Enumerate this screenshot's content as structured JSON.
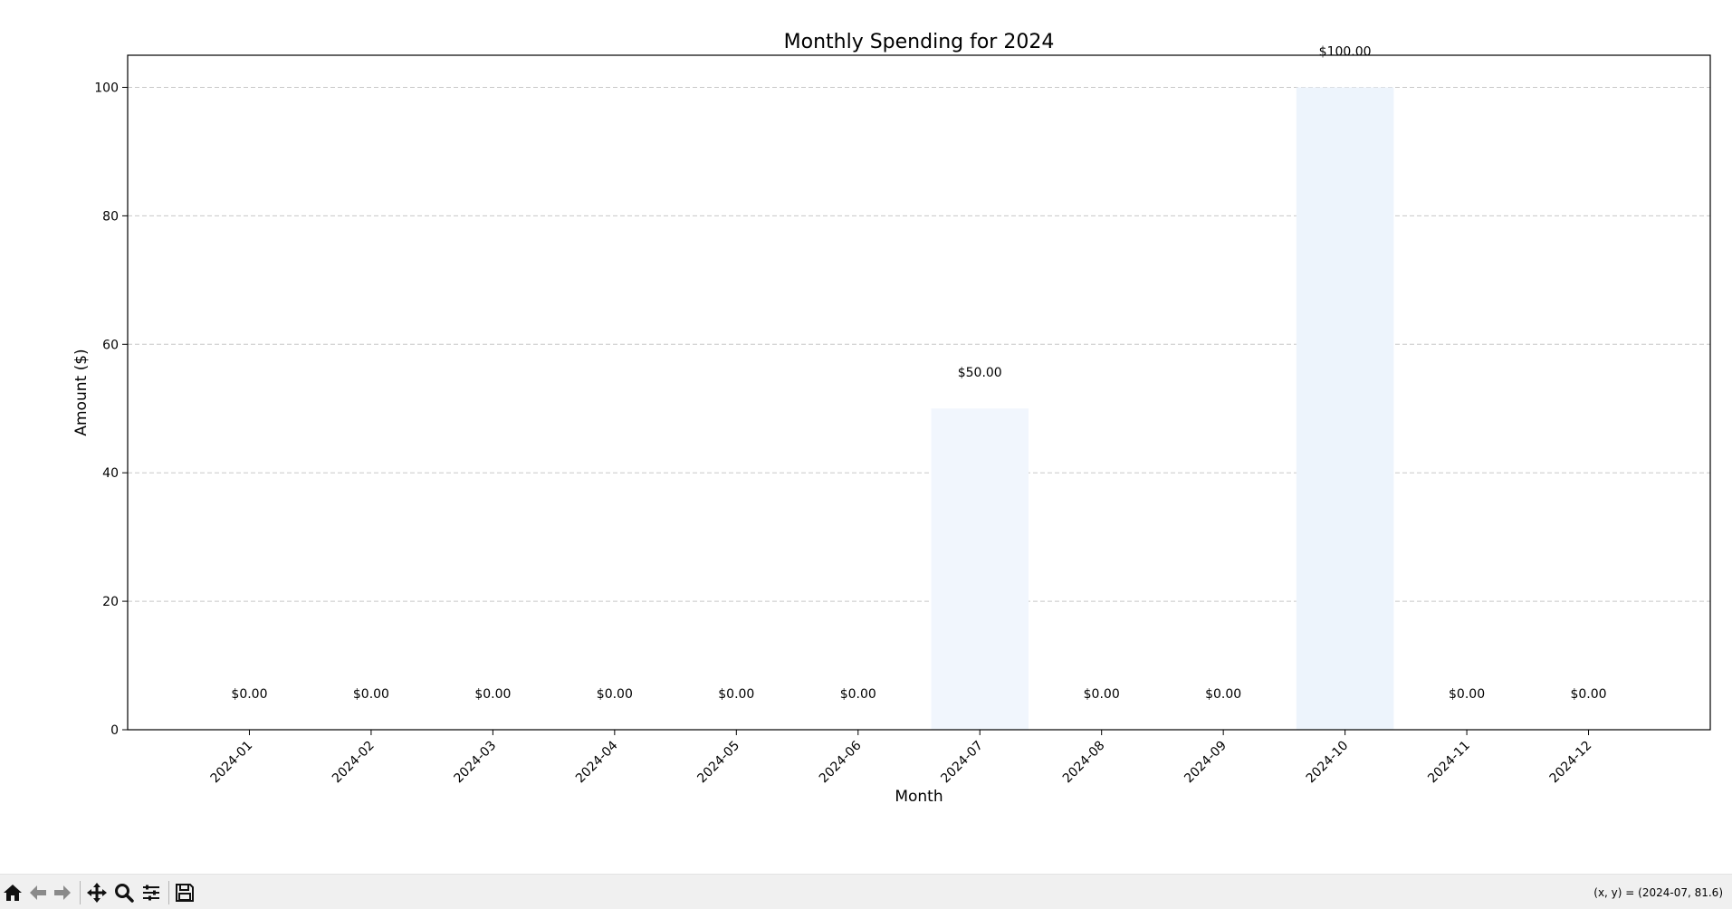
{
  "chart_data": {
    "type": "bar",
    "title": "Monthly Spending for 2024",
    "xlabel": "Month",
    "ylabel": "Amount ($)",
    "categories": [
      "2024-01",
      "2024-02",
      "2024-03",
      "2024-04",
      "2024-05",
      "2024-06",
      "2024-07",
      "2024-08",
      "2024-09",
      "2024-10",
      "2024-11",
      "2024-12"
    ],
    "values": [
      0,
      0,
      0,
      0,
      0,
      0,
      50,
      0,
      0,
      100,
      0,
      0
    ],
    "value_labels": [
      "$0.00",
      "$0.00",
      "$0.00",
      "$0.00",
      "$0.00",
      "$0.00",
      "$50.00",
      "$0.00",
      "$0.00",
      "$100.00",
      "$0.00",
      "$0.00"
    ],
    "ylim": [
      0,
      105
    ],
    "yticks": [
      0,
      20,
      40,
      60,
      80,
      100
    ],
    "grid": "y-dashed",
    "bar_colors": [
      "#f1f6fd",
      "#f1f6fd",
      "#f1f6fd",
      "#f1f6fd",
      "#f1f6fd",
      "#f1f6fd",
      "#f1f6fd",
      "#f1f6fd",
      "#f1f6fd",
      "#edf4fc",
      "#f1f6fd",
      "#f1f6fd"
    ]
  },
  "toolbar": {
    "buttons": [
      "home-icon",
      "back-icon",
      "forward-icon",
      "pan-icon",
      "zoom-icon",
      "configure-icon",
      "save-icon"
    ],
    "coords_text": "(x, y) = (2024-07, 81.6)"
  }
}
